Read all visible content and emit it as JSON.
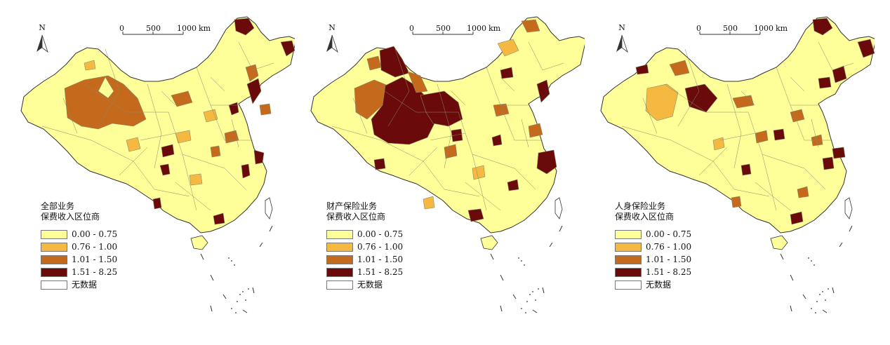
{
  "colors": {
    "class0": "#ffff99",
    "class1": "#f5b942",
    "class2": "#c56a1d",
    "class3": "#6b0a0a",
    "nodata": "#ffffff",
    "boundary": "#8a8a6a",
    "outline": "#333333"
  },
  "scale_bar": {
    "ticks": [
      "0",
      "500",
      "1000"
    ],
    "unit": "km"
  },
  "north_label": "N",
  "legend_classes": [
    {
      "label": "0.00 - 0.75",
      "color_key": "class0"
    },
    {
      "label": "0.76 - 1.00",
      "color_key": "class1"
    },
    {
      "label": "1.01 - 1.50",
      "color_key": "class2"
    },
    {
      "label": "1.51 - 8.25",
      "color_key": "class3"
    },
    {
      "label": "无数据",
      "color_key": "nodata"
    }
  ],
  "panels": [
    {
      "id": "all",
      "legend_title": "全部业务\n保费收入区位商"
    },
    {
      "id": "property",
      "legend_title": "财产保险业务\n保费收入区位商"
    },
    {
      "id": "life",
      "legend_title": "人身保险业务\n保费收入区位商"
    }
  ]
}
